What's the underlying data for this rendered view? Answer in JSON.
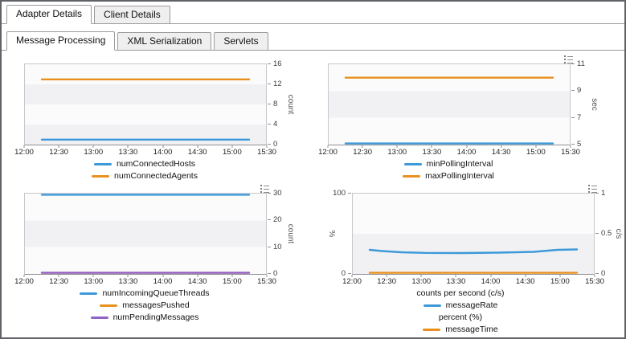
{
  "outer_tabs": [
    {
      "label": "Adapter Details",
      "active": true
    },
    {
      "label": "Client Details",
      "active": false
    }
  ],
  "inner_tabs": [
    {
      "label": "Message Processing",
      "active": true
    },
    {
      "label": "XML Serialization",
      "active": false
    },
    {
      "label": "Servlets",
      "active": false
    }
  ],
  "colors": {
    "blue": "#3d99d8",
    "orange": "#e8911e",
    "purple": "#8f63c9"
  },
  "chart_data": [
    {
      "type": "line",
      "name": "connected-hosts-agents",
      "x_ticks": [
        "12:00",
        "12:30",
        "13:00",
        "13:30",
        "14:00",
        "14:30",
        "15:00",
        "15:30"
      ],
      "right_axis": {
        "label": "count",
        "lim": [
          0,
          16
        ],
        "ticks": [
          0,
          4,
          8,
          12,
          16
        ]
      },
      "series": [
        {
          "name": "numConnectedHosts",
          "color": "#3d99d8",
          "axis": "right",
          "x": [
            0.07,
            0.93
          ],
          "values": [
            1,
            1
          ]
        },
        {
          "name": "numConnectedAgents",
          "color": "#e8911e",
          "axis": "right",
          "x": [
            0.07,
            0.93
          ],
          "values": [
            13,
            13
          ]
        }
      ],
      "legend": [
        {
          "series": 0
        },
        {
          "series": 1
        }
      ],
      "options_icon": false
    },
    {
      "type": "line",
      "name": "polling-interval",
      "x_ticks": [
        "12:00",
        "12:30",
        "13:00",
        "13:30",
        "14:00",
        "14:30",
        "15:00",
        "15:30"
      ],
      "right_axis": {
        "label": "sec",
        "lim": [
          5,
          11
        ],
        "ticks": [
          5,
          7,
          9,
          11
        ]
      },
      "series": [
        {
          "name": "minPollingInterval",
          "color": "#3d99d8",
          "axis": "right",
          "x": [
            0.07,
            0.93
          ],
          "values": [
            5,
            5
          ]
        },
        {
          "name": "maxPollingInterval",
          "color": "#e8911e",
          "axis": "right",
          "x": [
            0.07,
            0.93
          ],
          "values": [
            10,
            10
          ]
        }
      ],
      "legend": [
        {
          "series": 0
        },
        {
          "series": 1
        }
      ],
      "options_icon": true
    },
    {
      "type": "line",
      "name": "incoming-queue-messages",
      "x_ticks": [
        "12:00",
        "12:30",
        "13:00",
        "13:30",
        "14:00",
        "14:30",
        "15:00",
        "15:30"
      ],
      "right_axis": {
        "label": "count",
        "lim": [
          0,
          30
        ],
        "ticks": [
          0,
          10,
          20,
          30
        ]
      },
      "series": [
        {
          "name": "numIncomingQueueThreads",
          "color": "#3d99d8",
          "axis": "right",
          "x": [
            0.07,
            0.93
          ],
          "values": [
            30,
            30
          ]
        },
        {
          "name": "messagesPushed",
          "color": "#e8911e",
          "axis": "right",
          "x": [
            0.07,
            0.93
          ],
          "values": [
            0,
            0
          ]
        },
        {
          "name": "numPendingMessages",
          "color": "#8f63c9",
          "axis": "right",
          "x": [
            0.07,
            0.93
          ],
          "values": [
            0,
            0
          ]
        }
      ],
      "legend": [
        {
          "series": 0
        },
        {
          "series": 1
        },
        {
          "series": 2
        }
      ],
      "options_icon": true
    },
    {
      "type": "line",
      "name": "message-rate-time",
      "x_ticks": [
        "12:00",
        "12:30",
        "13:00",
        "13:30",
        "14:00",
        "14:30",
        "15:00",
        "15:30"
      ],
      "left_axis": {
        "label": "%",
        "lim": [
          0,
          100
        ],
        "ticks": [
          0,
          100
        ]
      },
      "right_axis": {
        "label": "c/s",
        "lim": [
          0,
          1
        ],
        "ticks": [
          0,
          0.5,
          1
        ]
      },
      "series": [
        {
          "name": "messageRate",
          "color": "#3d99d8",
          "axis": "right",
          "x": [
            0.07,
            0.12,
            0.2,
            0.3,
            0.45,
            0.6,
            0.75,
            0.85,
            0.93
          ],
          "values": [
            0.3,
            0.285,
            0.27,
            0.262,
            0.26,
            0.265,
            0.275,
            0.3,
            0.305
          ]
        },
        {
          "name": "messageTime",
          "color": "#e8911e",
          "axis": "left",
          "x": [
            0.07,
            0.93
          ],
          "values": [
            0,
            0
          ]
        }
      ],
      "legend": [
        {
          "label": "counts per second (c/s)"
        },
        {
          "series": 0
        },
        {
          "label": "percent (%)"
        },
        {
          "series": 1
        }
      ],
      "options_icon": true
    }
  ]
}
